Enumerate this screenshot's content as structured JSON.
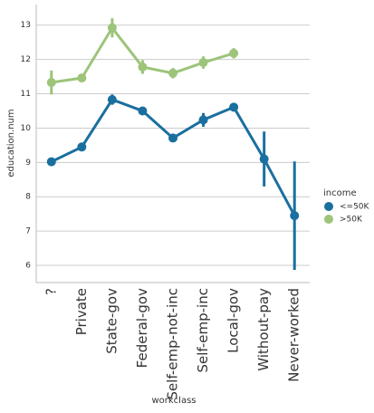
{
  "chart_data": {
    "type": "pointplot",
    "x_label": "workclass",
    "y_label": "education.num",
    "categories": [
      "?",
      "Private",
      "State-gov",
      "Federal-gov",
      "Self-emp-not-inc",
      "Self-emp-inc",
      "Local-gov",
      "Without-pay",
      "Never-worked"
    ],
    "ylim": [
      5.5,
      13.6
    ],
    "yticks": [
      6,
      7,
      8,
      9,
      10,
      11,
      12,
      13
    ],
    "grid": true,
    "legend_title": "income",
    "legend_position": "right",
    "series": [
      {
        "name": "<=50K",
        "color": "#1a6f9f",
        "values": [
          9.02,
          9.45,
          10.83,
          10.5,
          9.71,
          10.24,
          10.61,
          9.1,
          7.45
        ],
        "errors": [
          0.05,
          0.04,
          0.15,
          0.1,
          0.06,
          0.2,
          0.12,
          0.8,
          1.58
        ]
      },
      {
        "name": ">50K",
        "color": "#9dc47a",
        "values": [
          11.33,
          11.46,
          12.92,
          11.78,
          11.6,
          11.91,
          12.18,
          null,
          null
        ],
        "errors": [
          0.35,
          0.05,
          0.28,
          0.2,
          0.15,
          0.18,
          0.15,
          null,
          null
        ]
      }
    ]
  }
}
